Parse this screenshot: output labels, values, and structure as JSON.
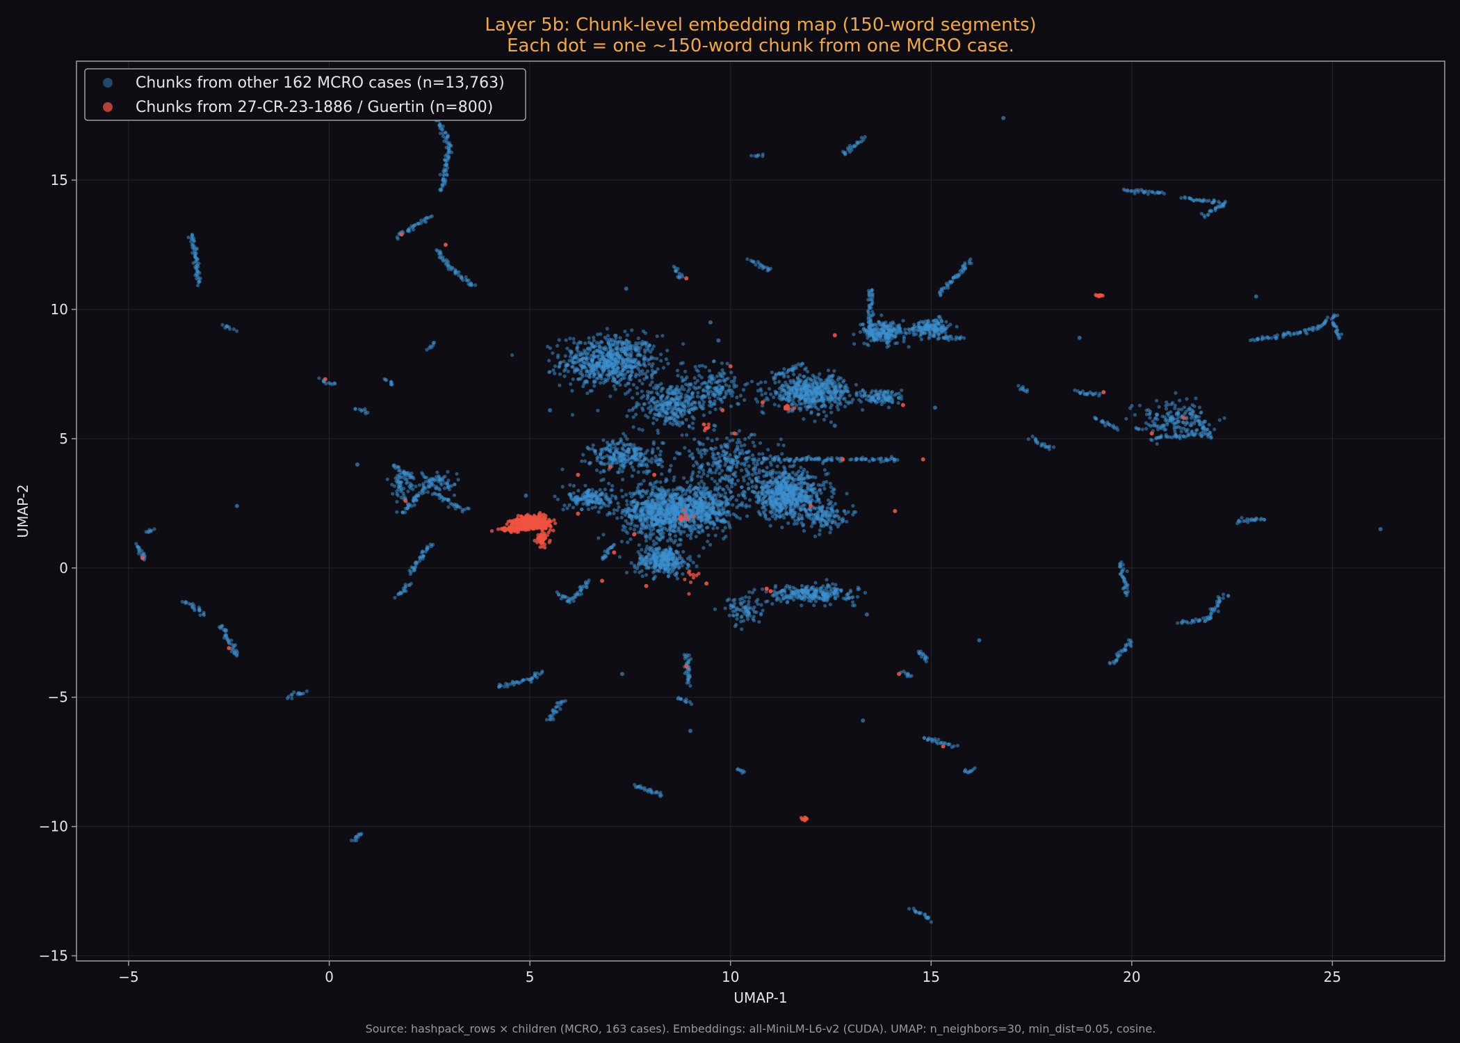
{
  "colors": {
    "background": "#0c0c12",
    "axes_bg": "#0d0d13",
    "title": "#f2a83c",
    "other_cases": "#3d8fcf",
    "target_case": "#ef5240",
    "text": "#e6e6e6",
    "footer": "#9a9a9a",
    "grid": "#24242c",
    "spine": "#a0a0a0"
  },
  "chart_data": {
    "type": "scatter",
    "title": "Layer 5b: Chunk-level embedding map (150-word segments)",
    "subtitle": "Each dot = one ~150-word chunk from one MCRO case.",
    "xlabel": "UMAP-1",
    "ylabel": "UMAP-2",
    "xlim": [
      -6.3,
      27.8
    ],
    "ylim": [
      -15.2,
      19.6
    ],
    "xticks": [
      -5,
      0,
      5,
      10,
      15,
      20,
      25
    ],
    "yticks": [
      -15,
      -10,
      -5,
      0,
      5,
      10,
      15
    ],
    "grid": true,
    "legend_position": "top-left",
    "footer": "Source: hashpack_rows × children (MCRO, 163 cases). Embeddings: all-MiniLM-L6-v2 (CUDA). UMAP: n_neighbors=30, min_dist=0.05, cosine.",
    "series": [
      {
        "name": "Chunks from other 162 MCRO cases (n=13,763)",
        "color": "#3d8fcf",
        "clusters": [
          {
            "c": [
              7.0,
              8.0
            ],
            "s": [
              1.1,
              0.9
            ],
            "n": 650
          },
          {
            "c": [
              8.5,
              6.3
            ],
            "s": [
              0.8,
              0.8
            ],
            "n": 300
          },
          {
            "c": [
              8.3,
              2.2
            ],
            "s": [
              0.9,
              0.9
            ],
            "n": 750
          },
          {
            "c": [
              9.4,
              2.3
            ],
            "s": [
              0.6,
              0.8
            ],
            "n": 350
          },
          {
            "c": [
              8.3,
              0.3
            ],
            "s": [
              0.6,
              0.5
            ],
            "n": 300
          },
          {
            "c": [
              11.4,
              2.8
            ],
            "s": [
              0.9,
              0.8
            ],
            "n": 650
          },
          {
            "c": [
              12.0,
              6.8
            ],
            "s": [
              0.9,
              0.6
            ],
            "n": 500
          },
          {
            "c": [
              7.4,
              4.3
            ],
            "s": [
              0.8,
              0.6
            ],
            "n": 250
          },
          {
            "c": [
              10.0,
              4.0
            ],
            "s": [
              1.2,
              1.0
            ],
            "n": 300
          },
          {
            "c": [
              13.8,
              9.1
            ],
            "s": [
              0.5,
              0.4
            ],
            "n": 200
          },
          {
            "c": [
              15.0,
              9.3
            ],
            "s": [
              0.5,
              0.3
            ],
            "n": 150
          },
          {
            "c": [
              12.0,
              -1.0
            ],
            "s": [
              1.0,
              0.3
            ],
            "n": 250
          },
          {
            "c": [
              10.3,
              -1.6
            ],
            "s": [
              0.4,
              0.5
            ],
            "n": 80
          },
          {
            "c": [
              6.5,
              2.7
            ],
            "s": [
              0.5,
              0.4
            ],
            "n": 150
          },
          {
            "c": [
              13.8,
              6.6
            ],
            "s": [
              0.5,
              0.3
            ],
            "n": 100
          },
          {
            "c": [
              9.6,
              7.0
            ],
            "s": [
              0.6,
              0.8
            ],
            "n": 150
          },
          {
            "c": [
              12.3,
              2.0
            ],
            "s": [
              0.5,
              0.4
            ],
            "n": 120
          },
          {
            "c": [
              21.0,
              5.8
            ],
            "s": [
              0.9,
              0.6
            ],
            "n": 150
          },
          {
            "c": [
              1.8,
              3.2
            ],
            "s": [
              0.3,
              0.6
            ],
            "n": 60
          },
          {
            "c": [
              2.7,
              3.3
            ],
            "s": [
              0.5,
              0.5
            ],
            "n": 60
          }
        ],
        "strands": [
          [
            [
              2.7,
              17.3
            ],
            [
              3.0,
              16.3
            ],
            [
              2.8,
              14.6
            ]
          ],
          [
            [
              1.7,
              12.8
            ],
            [
              2.5,
              13.6
            ]
          ],
          [
            [
              2.7,
              12.3
            ],
            [
              3.0,
              11.6
            ],
            [
              3.6,
              10.9
            ]
          ],
          [
            [
              -3.4,
              12.9
            ],
            [
              -3.25,
              11.0
            ]
          ],
          [
            [
              8.6,
              11.6
            ],
            [
              8.8,
              11.2
            ]
          ],
          [
            [
              10.5,
              11.9
            ],
            [
              11.0,
              11.5
            ]
          ],
          [
            [
              12.8,
              16.0
            ],
            [
              13.3,
              16.6
            ]
          ],
          [
            [
              10.6,
              15.9
            ],
            [
              10.8,
              16.0
            ]
          ],
          [
            [
              19.8,
              14.6
            ],
            [
              20.8,
              14.5
            ]
          ],
          [
            [
              21.3,
              14.3
            ],
            [
              22.3,
              14.1
            ],
            [
              21.8,
              13.6
            ]
          ],
          [
            [
              15.2,
              10.6
            ],
            [
              16.0,
              11.9
            ]
          ],
          [
            [
              13.5,
              10.8
            ],
            [
              13.5,
              9.0
            ]
          ],
          [
            [
              23.0,
              8.8
            ],
            [
              24.5,
              9.2
            ],
            [
              25.1,
              9.8
            ]
          ],
          [
            [
              25.0,
              9.5
            ],
            [
              25.2,
              8.9
            ]
          ],
          [
            [
              17.2,
              7.0
            ],
            [
              17.4,
              6.8
            ]
          ],
          [
            [
              17.5,
              5.0
            ],
            [
              18.0,
              4.6
            ]
          ],
          [
            [
              19.1,
              5.8
            ],
            [
              19.6,
              5.4
            ]
          ],
          [
            [
              18.6,
              6.8
            ],
            [
              19.2,
              6.7
            ]
          ],
          [
            [
              20.5,
              5.0
            ],
            [
              21.8,
              5.2
            ]
          ],
          [
            [
              21.5,
              6.0
            ],
            [
              22.0,
              5.0
            ]
          ],
          [
            [
              13.0,
              4.2
            ],
            [
              14.2,
              4.2
            ]
          ],
          [
            [
              10.9,
              4.2
            ],
            [
              12.8,
              4.2
            ]
          ],
          [
            [
              22.6,
              1.8
            ],
            [
              23.3,
              1.9
            ]
          ],
          [
            [
              19.7,
              0.2
            ],
            [
              19.9,
              -1.0
            ]
          ],
          [
            [
              22.3,
              -1.0
            ],
            [
              21.9,
              -2.0
            ],
            [
              21.2,
              -2.1
            ]
          ],
          [
            [
              19.5,
              -3.7
            ],
            [
              20.0,
              -2.8
            ]
          ],
          [
            [
              4.2,
              -4.6
            ],
            [
              5.0,
              -4.3
            ],
            [
              5.3,
              -4.0
            ]
          ],
          [
            [
              5.5,
              -5.9
            ],
            [
              5.8,
              -5.1
            ]
          ],
          [
            [
              8.9,
              -3.3
            ],
            [
              8.95,
              -4.5
            ]
          ],
          [
            [
              7.6,
              -8.4
            ],
            [
              8.3,
              -8.8
            ]
          ],
          [
            [
              14.8,
              -6.6
            ],
            [
              15.6,
              -6.9
            ]
          ],
          [
            [
              15.8,
              -7.9
            ],
            [
              16.1,
              -7.8
            ]
          ],
          [
            [
              14.7,
              -3.2
            ],
            [
              14.9,
              -3.6
            ]
          ],
          [
            [
              14.5,
              -13.2
            ],
            [
              15.0,
              -13.6
            ]
          ],
          [
            [
              0.6,
              -10.6
            ],
            [
              0.8,
              -10.3
            ]
          ],
          [
            [
              -1.0,
              -5.0
            ],
            [
              -0.6,
              -4.8
            ]
          ],
          [
            [
              -3.6,
              -1.3
            ],
            [
              -3.1,
              -1.8
            ]
          ],
          [
            [
              -2.7,
              -2.2
            ],
            [
              -2.3,
              -3.4
            ]
          ],
          [
            [
              -4.8,
              0.9
            ],
            [
              -4.6,
              0.3
            ]
          ],
          [
            [
              -4.5,
              1.4
            ],
            [
              -4.4,
              1.5
            ]
          ],
          [
            [
              1.7,
              -1.1
            ],
            [
              2.0,
              -0.6
            ]
          ],
          [
            [
              2.0,
              -0.2
            ],
            [
              2.5,
              0.9
            ]
          ],
          [
            [
              6.0,
              -1.3
            ],
            [
              6.5,
              -0.5
            ]
          ],
          [
            [
              6.8,
              0.3
            ],
            [
              7.1,
              0.9
            ]
          ],
          [
            [
              1.8,
              2.1
            ],
            [
              2.6,
              3.4
            ]
          ],
          [
            [
              2.6,
              2.9
            ],
            [
              3.4,
              2.2
            ]
          ],
          [
            [
              1.6,
              4.0
            ],
            [
              2.1,
              3.5
            ]
          ],
          [
            [
              2.5,
              8.5
            ],
            [
              2.6,
              8.7
            ]
          ],
          [
            [
              -0.2,
              7.3
            ],
            [
              0.1,
              7.1
            ]
          ],
          [
            [
              0.7,
              6.2
            ],
            [
              0.9,
              6.0
            ]
          ],
          [
            [
              1.4,
              7.3
            ],
            [
              1.6,
              7.1
            ]
          ],
          [
            [
              -2.6,
              9.4
            ],
            [
              -2.4,
              9.2
            ]
          ],
          [
            [
              15.2,
              8.9
            ],
            [
              15.8,
              8.9
            ]
          ],
          [
            [
              14.3,
              -4.0
            ],
            [
              14.5,
              -4.2
            ]
          ],
          [
            [
              10.2,
              -7.8
            ],
            [
              10.3,
              -7.9
            ]
          ],
          [
            [
              11.1,
              7.4
            ],
            [
              11.8,
              7.9
            ]
          ],
          [
            [
              8.7,
              -5.0
            ],
            [
              9.0,
              -5.2
            ]
          ],
          [
            [
              5.7,
              -1.0
            ],
            [
              6.0,
              -1.3
            ]
          ]
        ],
        "singles": [
          [
            16.8,
            17.4
          ],
          [
            7.4,
            10.8
          ],
          [
            9.5,
            9.5
          ],
          [
            9.7,
            8.8
          ],
          [
            5.5,
            6.1
          ],
          [
            0.7,
            4.0
          ],
          [
            -2.3,
            2.4
          ],
          [
            7.3,
            -4.1
          ],
          [
            16.2,
            -2.8
          ],
          [
            13.3,
            -5.9
          ],
          [
            18.7,
            8.9
          ],
          [
            23.1,
            10.5
          ],
          [
            26.2,
            1.5
          ],
          [
            15.1,
            6.2
          ],
          [
            12.6,
            5.5
          ],
          [
            13.4,
            -1.8
          ],
          [
            9.0,
            -6.3
          ],
          [
            4.9,
            2.8
          ]
        ]
      },
      {
        "name": "Chunks from 27-CR-23-1886 / Guertin (n=800)",
        "color": "#ef5240",
        "clusters": [
          {
            "c": [
              5.05,
              1.75
            ],
            "s": [
              0.4,
              0.22
            ],
            "n": 560
          },
          {
            "c": [
              4.55,
              1.5
            ],
            "s": [
              0.28,
              0.08
            ],
            "n": 60
          },
          {
            "c": [
              5.3,
              1.05
            ],
            "s": [
              0.12,
              0.3
            ],
            "n": 40
          },
          {
            "c": [
              9.0,
              -0.6
            ],
            "s": [
              0.2,
              0.5
            ],
            "n": 10
          },
          {
            "c": [
              8.8,
              2.0
            ],
            "s": [
              0.3,
              0.3
            ],
            "n": 10
          },
          {
            "c": [
              11.5,
              6.2
            ],
            "s": [
              0.2,
              0.1
            ],
            "n": 10
          },
          {
            "c": [
              9.4,
              5.4
            ],
            "s": [
              0.1,
              0.15
            ],
            "n": 8
          },
          {
            "c": [
              19.2,
              10.55
            ],
            "s": [
              0.08,
              0.04
            ],
            "n": 15
          },
          {
            "c": [
              11.85,
              -9.7
            ],
            "s": [
              0.06,
              0.06
            ],
            "n": 12
          }
        ],
        "singles": [
          [
            1.8,
            12.9
          ],
          [
            2.9,
            12.5
          ],
          [
            1.9,
            2.6
          ],
          [
            6.2,
            2.1
          ],
          [
            6.2,
            3.6
          ],
          [
            7.0,
            3.9
          ],
          [
            7.1,
            0.6
          ],
          [
            8.9,
            11.2
          ],
          [
            10.0,
            7.8
          ],
          [
            10.8,
            6.4
          ],
          [
            12.6,
            9.0
          ],
          [
            14.3,
            6.3
          ],
          [
            14.8,
            4.2
          ],
          [
            12.8,
            4.2
          ],
          [
            14.1,
            2.2
          ],
          [
            19.3,
            6.8
          ],
          [
            20.5,
            5.2
          ],
          [
            21.3,
            5.8
          ],
          [
            9.4,
            -0.6
          ],
          [
            7.6,
            1.3
          ],
          [
            7.9,
            -0.7
          ],
          [
            11.0,
            -0.9
          ],
          [
            8.9,
            -3.8
          ],
          [
            -2.5,
            -3.1
          ],
          [
            14.2,
            -4.1
          ],
          [
            15.3,
            -6.9
          ],
          [
            -0.1,
            7.3
          ],
          [
            -4.65,
            0.4
          ],
          [
            10.9,
            -0.8
          ],
          [
            10.1,
            5.2
          ],
          [
            8.1,
            3.6
          ],
          [
            6.8,
            -0.5
          ],
          [
            9.8,
            6.1
          ],
          [
            12.0,
            2.4
          ]
        ]
      }
    ]
  }
}
